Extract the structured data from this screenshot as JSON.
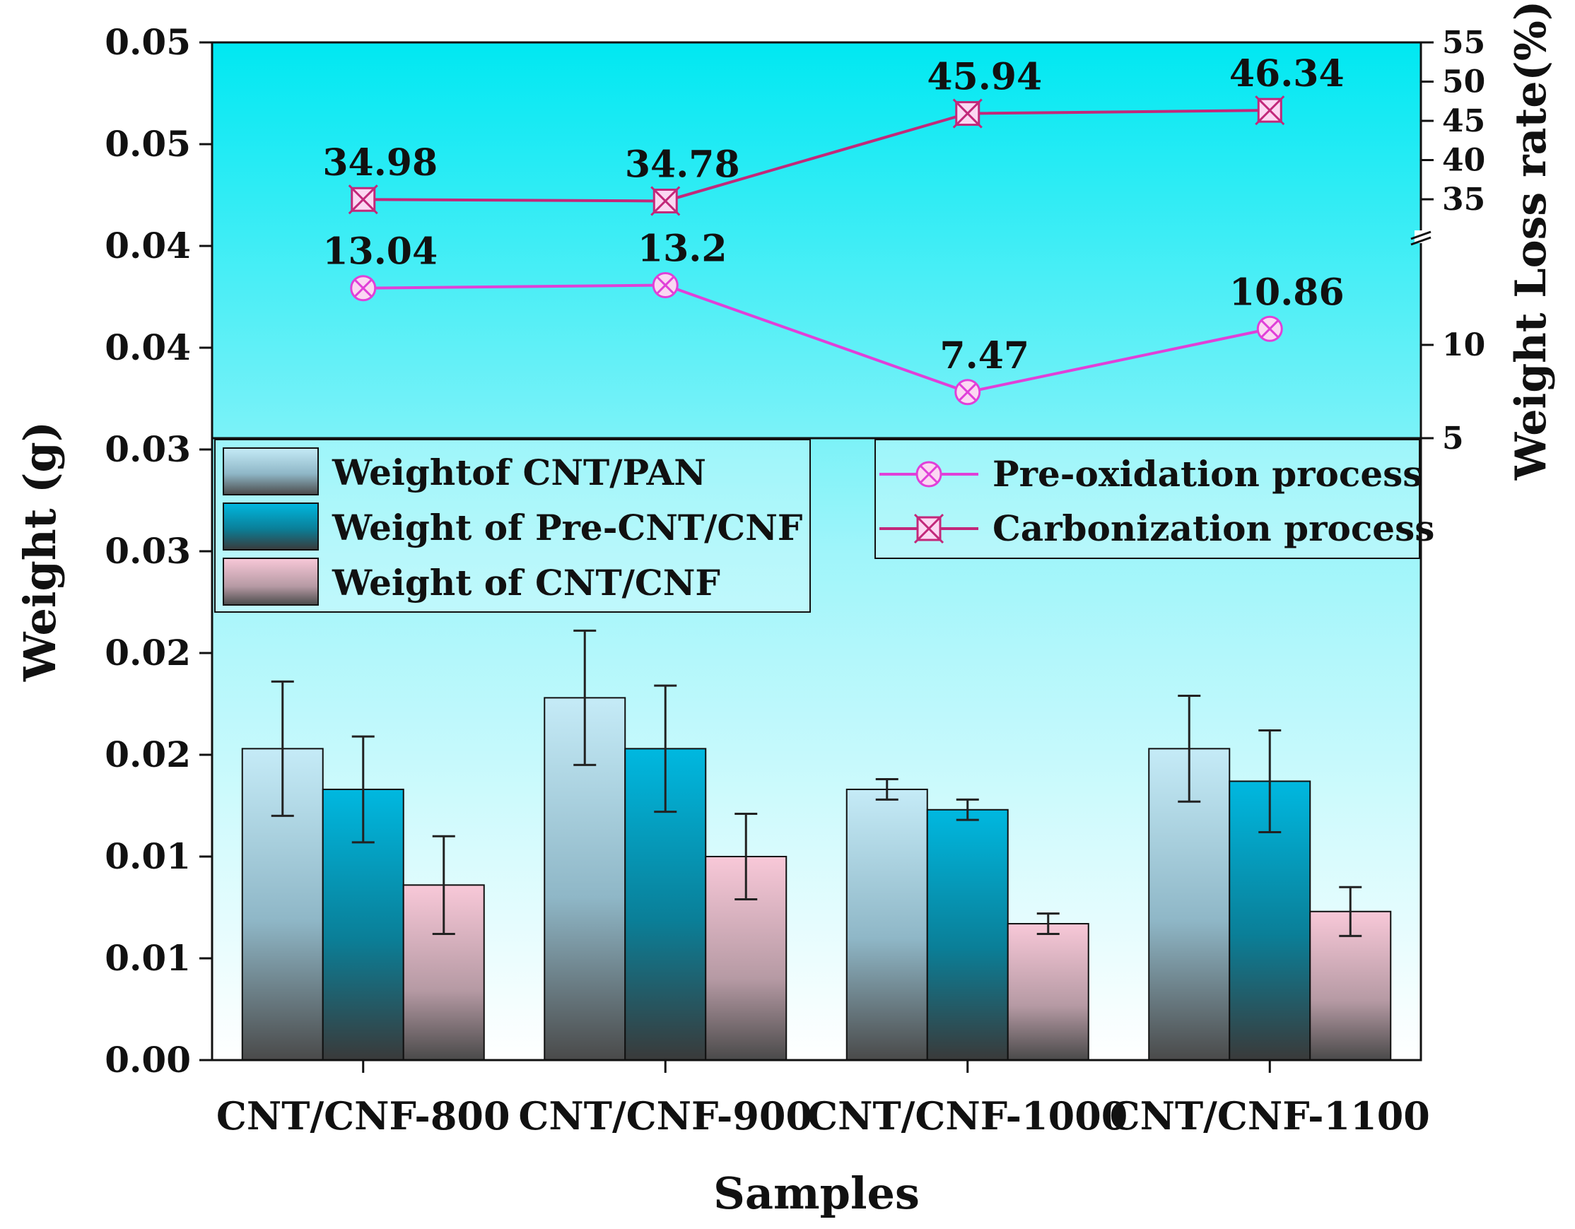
{
  "chart_data": {
    "type": "bar",
    "categories": [
      "CNT/CNF-800",
      "CNT/CNF-900",
      "CNT/CNF-1000",
      "CNT/CNF-1100"
    ],
    "xlabel": "Samples",
    "ylabel": "Weight (g)",
    "y_tick_labels": [
      "0.00",
      "0.01",
      "0.01",
      "0.02",
      "0.02",
      "0.03",
      "0.03",
      "0.04",
      "0.04",
      "0.05",
      "0.05"
    ],
    "ylim": [
      0,
      0.05
    ],
    "series": [
      {
        "name": "Weightof CNT/PAN",
        "values": [
          0.0153,
          0.0178,
          0.0133,
          0.0153
        ],
        "errors": [
          0.0033,
          0.0033,
          0.0005,
          0.0026
        ],
        "color": "#b9e3f2"
      },
      {
        "name": "Weight of Pre-CNT/CNF",
        "values": [
          0.0133,
          0.0153,
          0.0123,
          0.0137
        ],
        "errors": [
          0.0026,
          0.0031,
          0.0005,
          0.0025
        ],
        "color": "#00acd6"
      },
      {
        "name": "Weight of CNT/CNF",
        "values": [
          0.0086,
          0.01,
          0.0067,
          0.0073
        ],
        "errors": [
          0.0024,
          0.0021,
          0.0005,
          0.0012
        ],
        "color": "#f7c4d3"
      }
    ],
    "y2label": "Weight Loss rate(%)",
    "y2_tick_labels_upper": [
      "35",
      "40",
      "45",
      "50",
      "55"
    ],
    "y2_tick_labels_lower": [
      "5",
      "10"
    ],
    "y2_axis_break": true,
    "lines": [
      {
        "name": "Pre-oxidation process",
        "values": [
          13.04,
          13.2,
          7.47,
          10.86
        ],
        "labels": [
          "13.04",
          "13.2",
          "7.47",
          "10.86"
        ],
        "color": "#e040d8"
      },
      {
        "name": "Carbonization process",
        "values": [
          34.98,
          34.78,
          45.94,
          46.34
        ],
        "labels": [
          "34.98",
          "34.78",
          "45.94",
          "46.34"
        ],
        "color": "#c2287a"
      }
    ],
    "legend_bars_position": "left, below upper panel",
    "legend_lines_position": "right, below upper panel",
    "background": {
      "top": "#00e8f2",
      "bottom": "#ffffff"
    }
  }
}
